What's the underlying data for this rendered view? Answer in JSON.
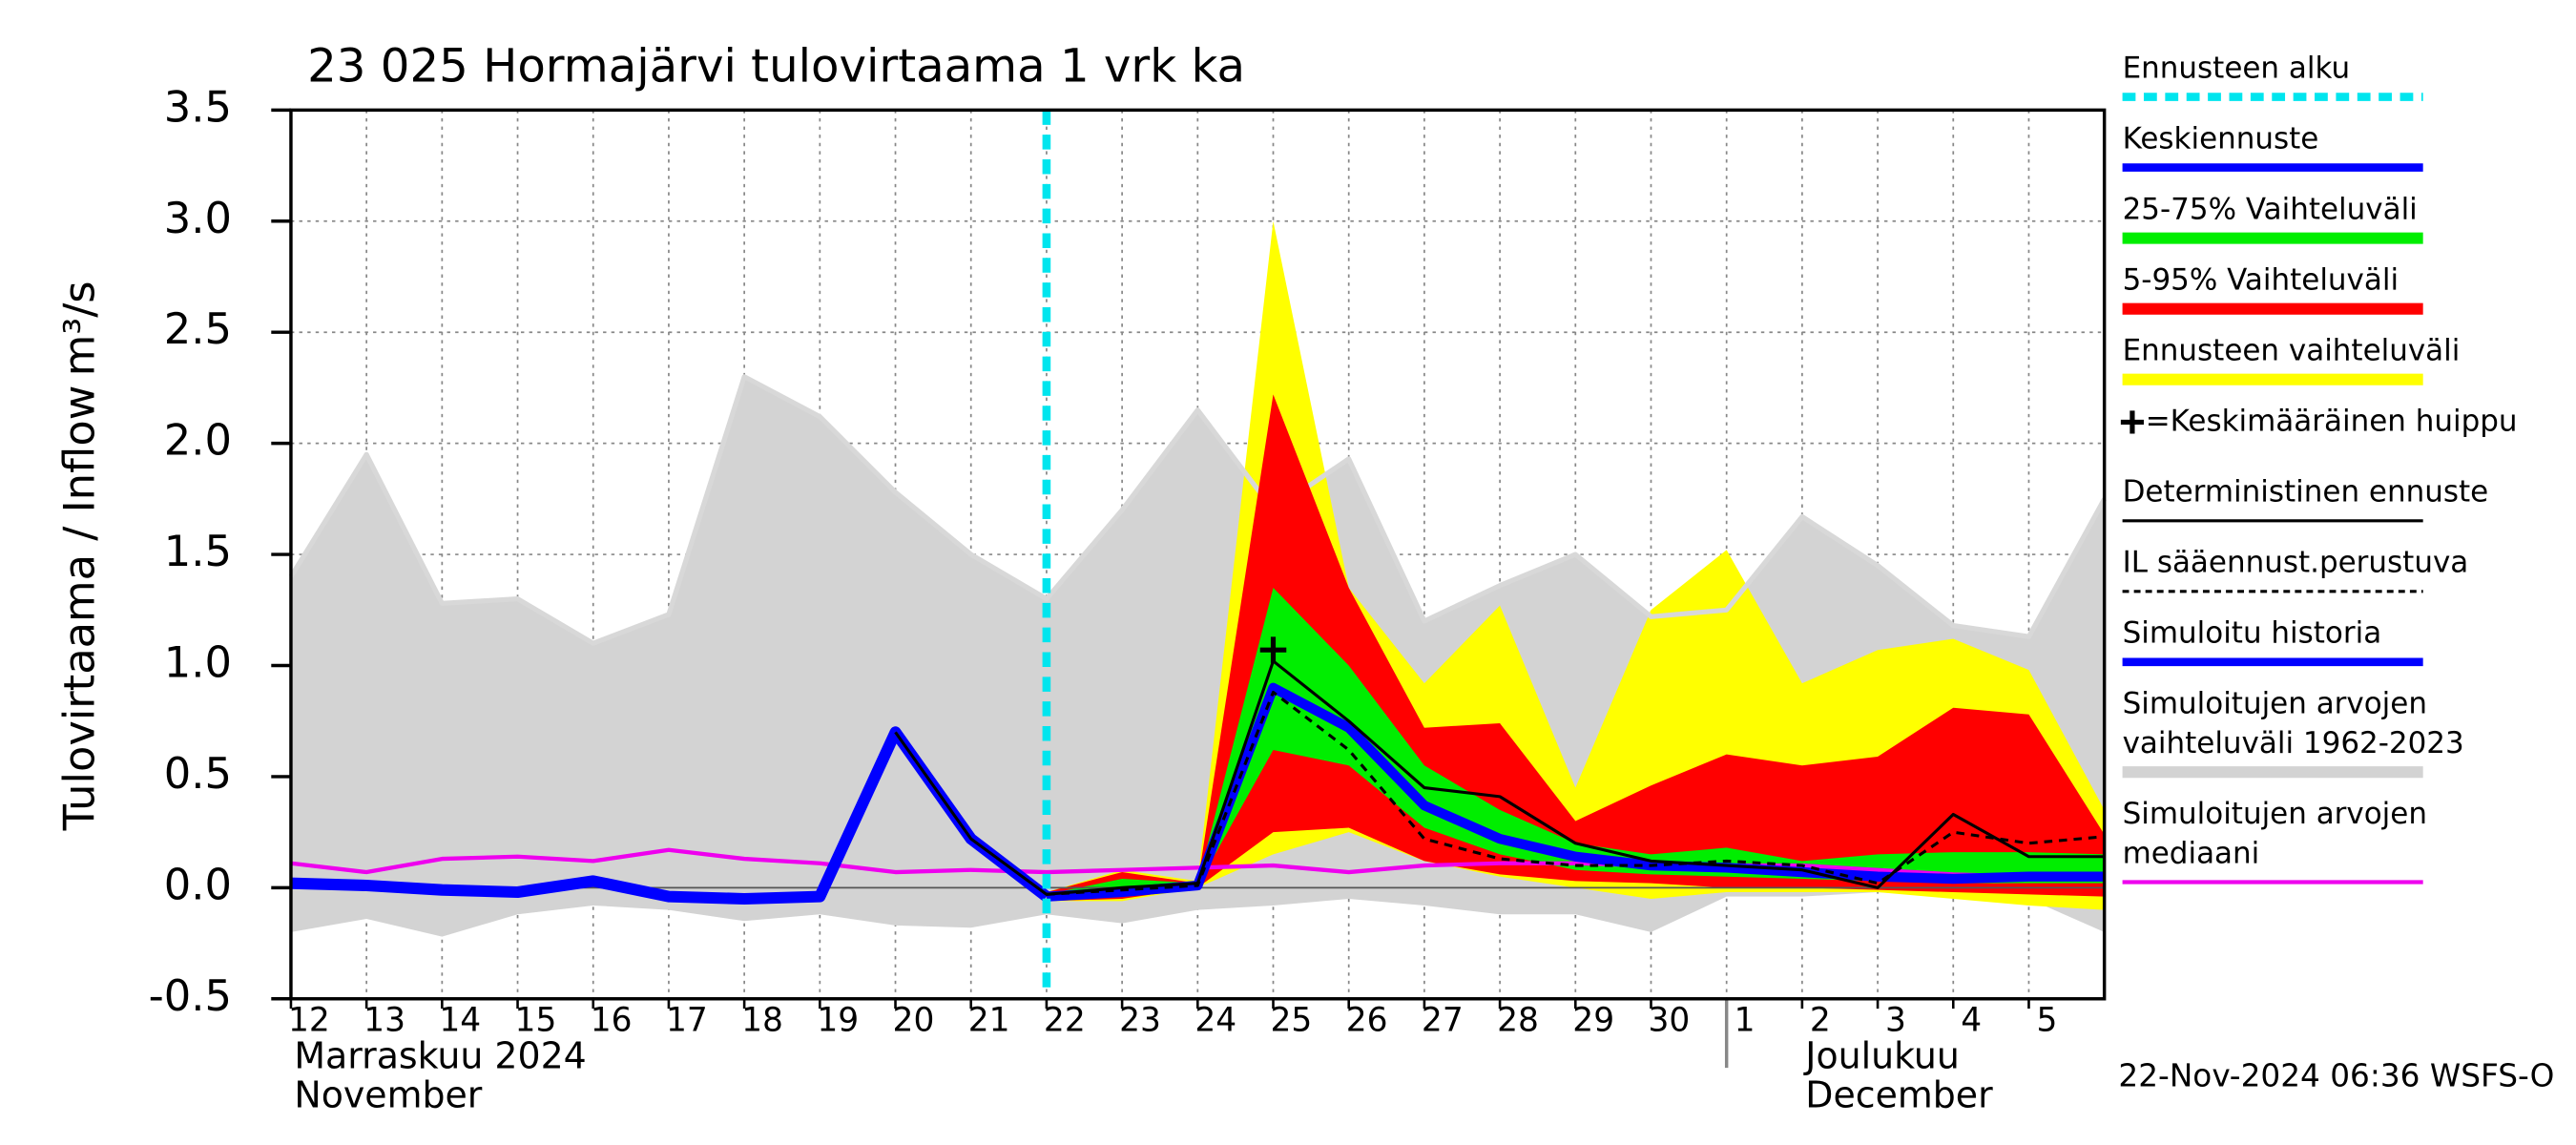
{
  "chart_data": {
    "type": "line",
    "title": "23 025 Hormajärvi tulovirtaama 1 vrk ka",
    "y_label": "Tulovirtaama / Inflow",
    "y_unit": "m³/s",
    "xlim": [
      12,
      36
    ],
    "xticks": [
      12,
      13,
      14,
      15,
      16,
      17,
      18,
      19,
      20,
      21,
      22,
      23,
      24,
      25,
      26,
      27,
      28,
      29,
      30,
      {
        "value": 31,
        "label": "1"
      },
      {
        "value": 32,
        "label": "2"
      },
      {
        "value": 33,
        "label": "3"
      },
      {
        "value": 34,
        "label": "4"
      },
      {
        "value": 35,
        "label": "5"
      }
    ],
    "ylim": [
      -0.5,
      3.5
    ],
    "yticks": [
      -0.5,
      {
        "value": 0,
        "label": "0.0"
      },
      0.5,
      {
        "value": 1,
        "label": "1.0"
      },
      1.5,
      {
        "value": 2,
        "label": "2.0"
      },
      2.5,
      {
        "value": 3,
        "label": "3.0"
      },
      3.5
    ],
    "grid": true,
    "months": [
      {
        "x": 12,
        "lines": [
          "Marraskuu 2024",
          "November"
        ]
      },
      {
        "x": 31,
        "lines": [
          "Joulukuu",
          "December"
        ]
      }
    ],
    "x": [
      12,
      13,
      14,
      15,
      16,
      17,
      18,
      19,
      20,
      21,
      22,
      23,
      24,
      25,
      26,
      27,
      28,
      29,
      30,
      31,
      32,
      33,
      34,
      35,
      36
    ],
    "forecast_start": {
      "name": "Ennusteen alku",
      "x": 22,
      "color": "#00e5ee"
    },
    "bands": [
      {
        "name": "Simuloitujen arvojen vaihteluväli 1962-2023",
        "color": "#d3d3d3",
        "upper": [
          1.4,
          1.95,
          1.28,
          1.3,
          1.1,
          1.23,
          2.3,
          2.12,
          1.78,
          1.5,
          1.3,
          1.7,
          2.15,
          1.7,
          1.93,
          1.2,
          1.36,
          1.5,
          1.22,
          1.25,
          1.67,
          1.45,
          1.18,
          1.13,
          1.75
        ],
        "lower": [
          -0.2,
          -0.14,
          -0.22,
          -0.12,
          -0.08,
          -0.1,
          -0.15,
          -0.12,
          -0.17,
          -0.18,
          -0.12,
          -0.16,
          -0.1,
          -0.08,
          -0.05,
          -0.08,
          -0.12,
          -0.12,
          -0.2,
          -0.04,
          -0.04,
          -0.02,
          -0.04,
          -0.05,
          -0.2
        ]
      },
      {
        "name": "Ennusteen vaihteluväli",
        "color": "#ffff00",
        "upper": [
          null,
          null,
          null,
          null,
          null,
          null,
          null,
          null,
          null,
          null,
          -0.02,
          0.08,
          0.03,
          3.0,
          1.35,
          0.92,
          1.27,
          0.45,
          1.25,
          1.52,
          0.92,
          1.07,
          1.12,
          0.98,
          0.35
        ],
        "lower": [
          null,
          null,
          null,
          null,
          null,
          null,
          null,
          null,
          null,
          null,
          -0.06,
          -0.06,
          0.0,
          0.15,
          0.25,
          0.12,
          0.05,
          0.0,
          -0.05,
          -0.02,
          -0.02,
          -0.02,
          -0.05,
          -0.08,
          -0.1
        ]
      },
      {
        "name": "5-95% Vaihteluväli",
        "color": "#ff0000",
        "upper": [
          null,
          null,
          null,
          null,
          null,
          null,
          null,
          null,
          null,
          null,
          -0.02,
          0.07,
          0.02,
          2.22,
          1.35,
          0.72,
          0.74,
          0.3,
          0.46,
          0.6,
          0.55,
          0.59,
          0.81,
          0.78,
          0.24
        ],
        "lower": [
          null,
          null,
          null,
          null,
          null,
          null,
          null,
          null,
          null,
          null,
          -0.06,
          -0.05,
          0.0,
          0.25,
          0.27,
          0.12,
          0.06,
          0.03,
          0.02,
          0.0,
          0.0,
          -0.01,
          -0.02,
          -0.03,
          -0.04
        ]
      },
      {
        "name": "25-75% Vaihteluväli",
        "color": "#00ee00",
        "upper": [
          null,
          null,
          null,
          null,
          null,
          null,
          null,
          null,
          null,
          null,
          -0.03,
          0.04,
          0.02,
          1.35,
          1.0,
          0.55,
          0.35,
          0.2,
          0.15,
          0.18,
          0.12,
          0.15,
          0.16,
          0.16,
          0.15
        ],
        "lower": [
          null,
          null,
          null,
          null,
          null,
          null,
          null,
          null,
          null,
          null,
          -0.05,
          -0.03,
          0.01,
          0.62,
          0.55,
          0.27,
          0.15,
          0.08,
          0.06,
          0.05,
          0.04,
          0.03,
          0.02,
          0.02,
          0.02
        ]
      }
    ],
    "series": [
      {
        "name": "Simuloitujen arvojen mediaani",
        "color": "#ee00ee",
        "width": 2.5,
        "dash": false,
        "values": [
          0.11,
          0.07,
          0.13,
          0.14,
          0.12,
          0.17,
          0.13,
          0.11,
          0.07,
          0.08,
          0.07,
          0.08,
          0.09,
          0.1,
          0.07,
          0.1,
          0.11,
          0.11,
          0.1,
          0.1,
          0.1,
          0.08,
          0.06,
          0.05,
          0.05
        ]
      },
      {
        "name": "Simuloitu historia",
        "color": "#0000ff",
        "width": 7,
        "dash": false,
        "values": [
          0.02,
          0.01,
          -0.01,
          -0.02,
          0.03,
          -0.04,
          -0.05,
          -0.04,
          0.7,
          0.22,
          -0.04,
          null,
          null,
          null,
          null,
          null,
          null,
          null,
          null,
          null,
          null,
          null,
          null,
          null,
          null
        ]
      },
      {
        "name": "Keskiennuste",
        "color": "#0000ff",
        "width": 6,
        "dash": false,
        "values": [
          null,
          null,
          null,
          null,
          null,
          null,
          null,
          null,
          null,
          null,
          -0.04,
          -0.02,
          0.01,
          0.9,
          0.72,
          0.37,
          0.22,
          0.14,
          0.1,
          0.09,
          0.07,
          0.05,
          0.04,
          0.05,
          0.05
        ]
      },
      {
        "name": "Deterministinen ennuste",
        "color": "#000000",
        "width": 1.8,
        "dash": false,
        "values": [
          null,
          null,
          null,
          null,
          null,
          null,
          null,
          null,
          0.7,
          0.22,
          -0.03,
          0.0,
          0.02,
          1.02,
          0.75,
          0.45,
          0.41,
          0.2,
          0.12,
          0.1,
          0.08,
          0.0,
          0.33,
          0.14,
          0.14
        ]
      },
      {
        "name": "IL sääennust.perustuva",
        "color": "#000000",
        "width": 1.8,
        "dash": true,
        "values": [
          null,
          null,
          null,
          null,
          null,
          null,
          null,
          null,
          null,
          null,
          -0.03,
          -0.01,
          0.01,
          0.88,
          0.62,
          0.22,
          0.13,
          0.1,
          0.1,
          0.12,
          0.1,
          0.02,
          0.25,
          0.2,
          0.23
        ]
      }
    ],
    "peak": {
      "name": "=Keskimääräinen huippu",
      "x": 25,
      "y": 1.07,
      "color": "#000000"
    },
    "legend_order": [
      "forecast_start",
      "series.2",
      "bands.3",
      "bands.2",
      "bands.1",
      "peak",
      "series.3",
      "series.4",
      "series.1",
      "bands.0",
      "series.0"
    ],
    "footer": "22-Nov-2024 06:36 WSFS-O"
  }
}
